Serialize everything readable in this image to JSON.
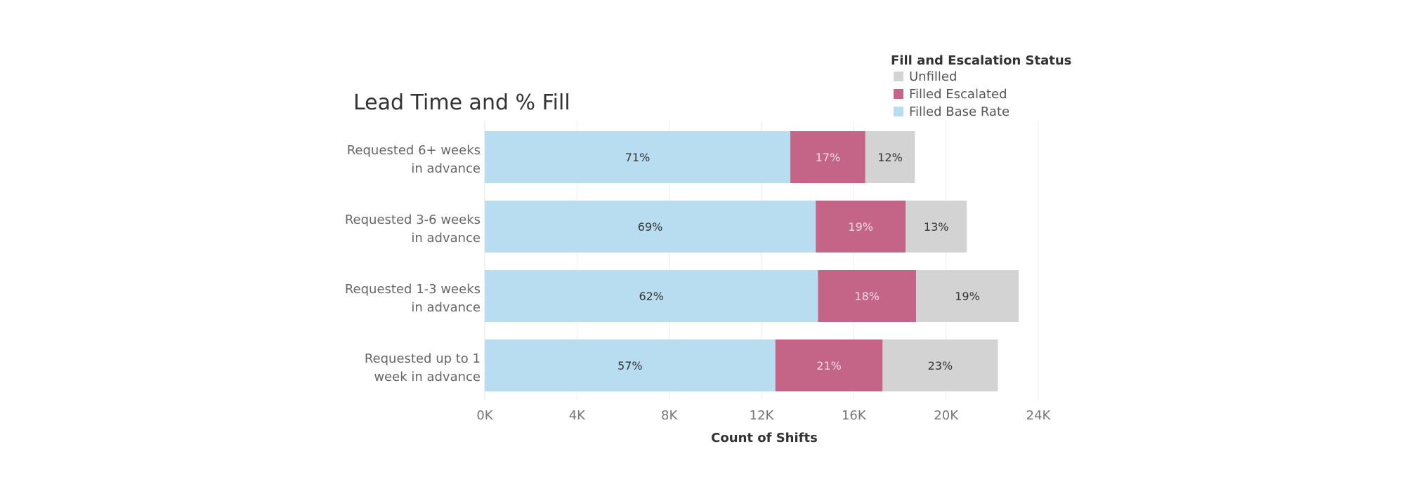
{
  "chart_data": {
    "type": "bar",
    "orientation": "horizontal",
    "stacked": true,
    "title": "Lead Time and % Fill",
    "xlabel": "Count of Shifts",
    "ylabel": "",
    "xlim": [
      0,
      24000
    ],
    "xticks": [
      {
        "value": 0,
        "label": "0K"
      },
      {
        "value": 4000,
        "label": "4K"
      },
      {
        "value": 8000,
        "label": "8K"
      },
      {
        "value": 12000,
        "label": "12K"
      },
      {
        "value": 16000,
        "label": "16K"
      },
      {
        "value": 20000,
        "label": "20K"
      },
      {
        "value": 24000,
        "label": "24K"
      }
    ],
    "grid": true,
    "legend": {
      "title": "Fill and Escalation Status",
      "position": "top-right",
      "entries": [
        {
          "name": "Unfilled",
          "color": "#d3d3d3"
        },
        {
          "name": "Filled Escalated",
          "color": "#c46487"
        },
        {
          "name": "Filled Base Rate",
          "color": "#b9ddf0"
        }
      ]
    },
    "categories": [
      [
        "Requested 6+ weeks",
        "in advance"
      ],
      [
        "Requested 3-6 weeks",
        "in advance"
      ],
      [
        "Requested 1-3 weeks",
        "in advance"
      ],
      [
        "Requested up to 1",
        "week in advance"
      ]
    ],
    "series": [
      {
        "name": "Filled Base Rate",
        "color": "#b9ddf0",
        "label_color": "#333333",
        "values": [
          13250,
          14350,
          14450,
          12600
        ],
        "labels": [
          "71%",
          "69%",
          "62%",
          "57%"
        ]
      },
      {
        "name": "Filled Escalated",
        "color": "#c46487",
        "label_color": "#f3dbe4",
        "values": [
          3250,
          3900,
          4250,
          4650
        ],
        "labels": [
          "17%",
          "19%",
          "18%",
          "21%"
        ]
      },
      {
        "name": "Unfilled",
        "color": "#d3d3d3",
        "label_color": "#333333",
        "values": [
          2150,
          2650,
          4450,
          5000
        ],
        "labels": [
          "12%",
          "13%",
          "19%",
          "23%"
        ]
      }
    ]
  }
}
